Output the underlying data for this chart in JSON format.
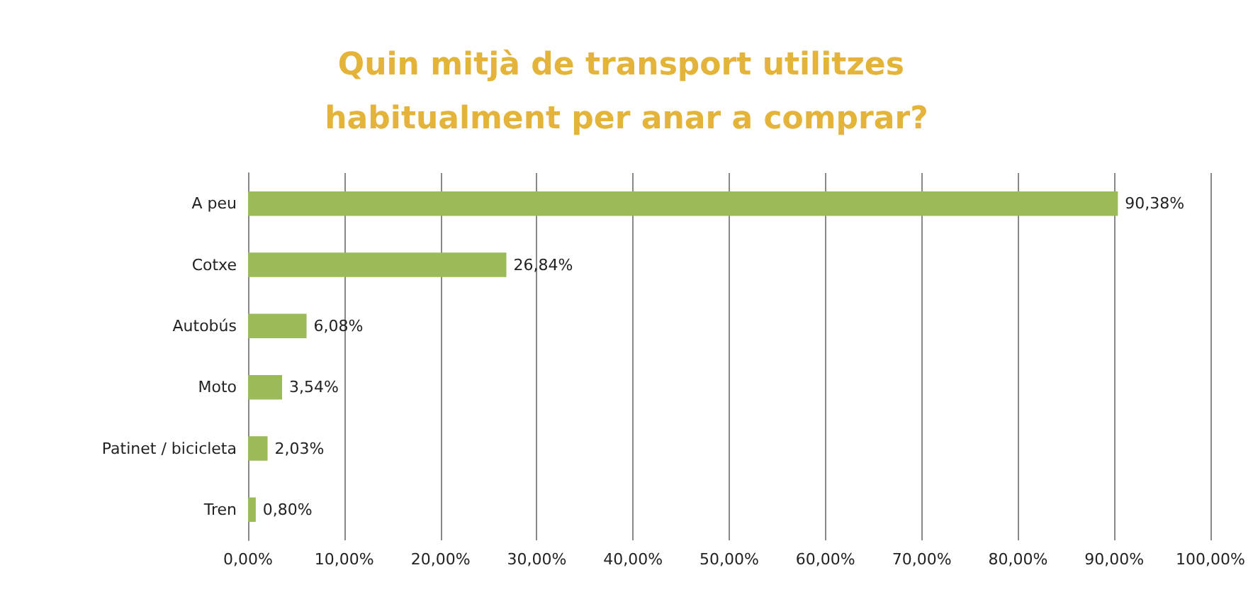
{
  "chart_data": {
    "type": "bar",
    "orientation": "horizontal",
    "title": "Quin mitjà de transport utilitzes habitualment per anar a comprar?",
    "categories": [
      "A peu",
      "Cotxe",
      "Autobús",
      "Moto",
      "Patinet / bicicleta",
      "Tren"
    ],
    "values": [
      90.38,
      26.84,
      6.08,
      3.54,
      2.03,
      0.8
    ],
    "value_labels": [
      "90,38%",
      "26,84%",
      "6,08%",
      "3,54%",
      "2,03%",
      "0,80%"
    ],
    "color": "#9bbb59",
    "xlim": [
      0,
      100
    ],
    "xticks": [
      {
        "value": 0,
        "label": "0,00%"
      },
      {
        "value": 10,
        "label": "10,00%"
      },
      {
        "value": 20,
        "label": "20,00%"
      },
      {
        "value": 30,
        "label": "30,00%"
      },
      {
        "value": 40,
        "label": "40,00%"
      },
      {
        "value": 50,
        "label": "50,00%"
      },
      {
        "value": 60,
        "label": "60,00%"
      },
      {
        "value": 70,
        "label": "70,00%"
      },
      {
        "value": 80,
        "label": "80,00%"
      },
      {
        "value": 90,
        "label": "90,00%"
      },
      {
        "value": 100,
        "label": "100,00%"
      }
    ],
    "grid": "x"
  }
}
